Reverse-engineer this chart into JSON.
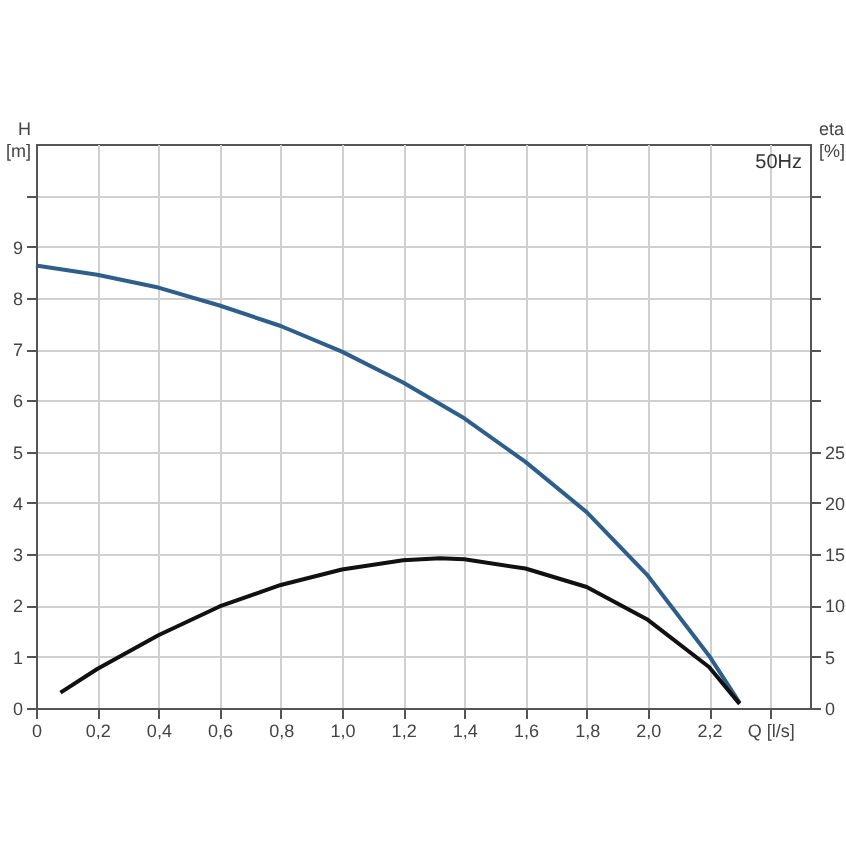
{
  "chart_data": {
    "type": "line",
    "xlabel": null,
    "ylabel": "H [m]",
    "y2label": "eta [%]",
    "annotations": [
      "50Hz"
    ],
    "xlim": [
      0,
      2.53
    ],
    "xticks": [
      0,
      {
        "value": 0.2,
        "label": "0,2"
      },
      {
        "value": 0.4,
        "label": "0,4"
      },
      {
        "value": 0.6,
        "label": "0,6"
      },
      {
        "value": 0.8,
        "label": "0,8"
      },
      {
        "value": 1.0,
        "label": "1,0"
      },
      {
        "value": 1.2,
        "label": "1,2"
      },
      {
        "value": 1.4,
        "label": "1,4"
      },
      {
        "value": 1.6,
        "label": "1,6"
      },
      {
        "value": 1.8,
        "label": "1,8"
      },
      {
        "value": 2.0,
        "label": "2,0"
      },
      {
        "value": 2.2,
        "label": "2,2"
      },
      {
        "value": 2.4,
        "label": "Q [l/s]"
      }
    ],
    "ylim": [
      0,
      11
    ],
    "yticks": [
      0,
      1,
      2,
      3,
      4,
      5,
      6,
      7,
      8,
      9,
      {
        "value": 10,
        "label": null
      }
    ],
    "y2lim": [
      0,
      55
    ],
    "y2ticks": [
      0,
      5,
      10,
      15,
      20,
      25,
      {
        "value": 30,
        "label": null
      },
      {
        "value": 35,
        "label": null
      },
      {
        "value": 40,
        "label": null
      },
      {
        "value": 45,
        "label": null
      },
      {
        "value": 50,
        "label": null
      }
    ],
    "grid": true,
    "marker": "none",
    "line_style": "solid",
    "series": [
      {
        "color": "#2e5f8a",
        "x": [
          0,
          0.2,
          0.4,
          0.6,
          0.8,
          1.0,
          1.2,
          1.4,
          1.6,
          1.8,
          2.0,
          2.2,
          2.3
        ],
        "values": [
          8.63,
          8.45,
          8.2,
          7.85,
          7.45,
          6.95,
          6.35,
          5.65,
          4.8,
          3.82,
          2.58,
          1.02,
          0.1
        ]
      },
      {
        "color": "#111111",
        "axis": "y2",
        "x": [
          0.08,
          0.2,
          0.4,
          0.6,
          0.8,
          1.0,
          1.2,
          1.32,
          1.4,
          1.6,
          1.8,
          2.0,
          2.2,
          2.3
        ],
        "values": [
          1.5,
          3.8,
          7.1,
          9.9,
          12,
          13.5,
          14.4,
          14.6,
          14.5,
          13.6,
          11.8,
          8.6,
          4,
          0.4
        ]
      }
    ]
  }
}
